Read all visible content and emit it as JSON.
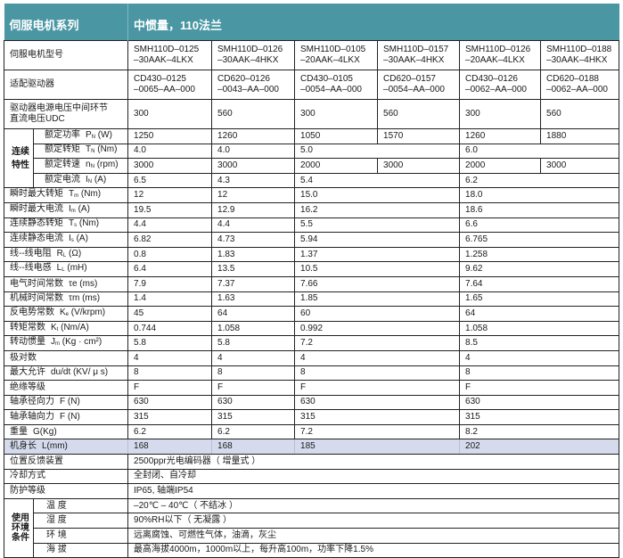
{
  "header": {
    "series_label": "伺服电机系列",
    "series_value": "中惯量，110法兰"
  },
  "accent_color": "#4a97a3",
  "highlight_color": "#d5dbec",
  "top_rows": [
    {
      "label": "伺服电机型号",
      "values": [
        "SMH110D–0125\n–30AAK–4LKX",
        "SMH110D–0126\n–30AAK–4HKX",
        "SMH110D–0105\n–20AAK–4LKX",
        "SMH110D–0157\n–30AAK–4HKX",
        "SMH110D–0126\n–20AAK–4LKX",
        "SMH110D–0188\n–30AAK–4HKX"
      ]
    },
    {
      "label": "适配驱动器",
      "values": [
        "CD430–0125\n–0065–AA–000",
        "CD620–0126\n–0043–AA–000",
        "CD430–0105\n–0054–AA–000",
        "CD620–0157\n–0054–AA–000",
        "CD430–0126\n–0062–AA–000",
        "CD620–0188\n–0062–AA–000"
      ]
    },
    {
      "label": "驱动器电源电压中间环节\n直流电压UDC",
      "values": [
        "300",
        "560",
        "300",
        "560",
        "300",
        "560"
      ]
    }
  ],
  "continuous": {
    "group_label": "连续特性",
    "rows": [
      {
        "name": "额定功率",
        "sym": "P",
        "sub": "N",
        "unit": "(W)",
        "cells": [
          [
            "1250",
            1
          ],
          [
            "1260",
            1
          ],
          [
            "1050",
            1
          ],
          [
            "1570",
            1
          ],
          [
            "1260",
            1
          ],
          [
            "1880",
            1
          ]
        ]
      },
      {
        "name": "额定转矩",
        "sym": "T",
        "sub": "N",
        "unit": "(Nm)",
        "cells": [
          [
            "4.0",
            1
          ],
          [
            "4.0",
            1
          ],
          [
            "5.0",
            2
          ],
          [
            "6.0",
            2
          ]
        ]
      },
      {
        "name": "额定转速",
        "sym": "n",
        "sub": "N",
        "unit": "(rpm)",
        "cells": [
          [
            "3000",
            1
          ],
          [
            "3000",
            1
          ],
          [
            "2000",
            1
          ],
          [
            "3000",
            1
          ],
          [
            "2000",
            1
          ],
          [
            "3000",
            1
          ]
        ]
      },
      {
        "name": "额定电流",
        "sym": "I",
        "sub": "N",
        "unit": "(A)",
        "cells": [
          [
            "6.5",
            1
          ],
          [
            "4.3",
            1
          ],
          [
            "5.4",
            2
          ],
          [
            "6.2",
            2
          ]
        ]
      }
    ]
  },
  "spec_rows": [
    {
      "name": "瞬时最大转矩",
      "sym": "T",
      "sub": "m",
      "unit": "(Nm)",
      "values": [
        "12",
        "12",
        "15.0",
        "18.0"
      ]
    },
    {
      "name": "瞬时最大电流",
      "sym": "I",
      "sub": "m",
      "unit": "(A)",
      "values": [
        "19.5",
        "12.9",
        "16.2",
        "18.6"
      ]
    },
    {
      "name": "连续静态转矩",
      "sym": "T",
      "sub": "s",
      "unit": "(Nm)",
      "values": [
        "4.4",
        "4.4",
        "5.5",
        "6.6"
      ]
    },
    {
      "name": "连续静态电流",
      "sym": "I",
      "sub": "s",
      "unit": "(A)",
      "values": [
        "6.82",
        "4.73",
        "5.94",
        "6.765"
      ]
    },
    {
      "name": "线--线电阻",
      "sym": "R",
      "sub": "L",
      "unit": "(Ω)",
      "values": [
        "0.8",
        "1.83",
        "1.37",
        "1.258"
      ]
    },
    {
      "name": "线--线电感",
      "sym": "L",
      "sub": "L",
      "unit": "(mH)",
      "values": [
        "6.4",
        "13.5",
        "10.5",
        "9.62"
      ]
    },
    {
      "name": "电气时间常数",
      "sym": "τe",
      "sub": "",
      "unit": "(ms)",
      "values": [
        "7.9",
        "7.37",
        "7.66",
        "7.64"
      ]
    },
    {
      "name": "机械时间常数",
      "sym": "τm",
      "sub": "",
      "unit": "(ms)",
      "values": [
        "1.4",
        "1.63",
        "1.85",
        "1.65"
      ]
    },
    {
      "name": "反电势常数",
      "sym": "K",
      "sub": "e",
      "unit": "(V/krpm)",
      "values": [
        "45",
        "64",
        "60",
        "64"
      ]
    },
    {
      "name": "转矩常数",
      "sym": "K",
      "sub": "t",
      "unit": "(Nm/A)",
      "values": [
        "0.744",
        "1.058",
        "0.992",
        "1.058"
      ]
    },
    {
      "name": "转动惯量",
      "sym": "J",
      "sub": "m",
      "unit": "(Kg · cm²)",
      "values": [
        "5.8",
        "5.8",
        "7.2",
        "8.5"
      ]
    },
    {
      "name": "极对数",
      "sym": "",
      "sub": "",
      "unit": "",
      "values": [
        "4",
        "4",
        "4",
        "4"
      ]
    },
    {
      "name": "最大允许",
      "sym": "du/dt",
      "sub": "",
      "unit": "(KV/ μ s)",
      "values": [
        "8",
        "8",
        "8",
        "8"
      ]
    },
    {
      "name": "绝缘等级",
      "sym": "",
      "sub": "",
      "unit": "",
      "values": [
        "F",
        "F",
        "F",
        "F"
      ]
    },
    {
      "name": "轴承径向力",
      "sym": "F",
      "sub": "",
      "unit": "(N)",
      "values": [
        "630",
        "630",
        "630",
        "630"
      ]
    },
    {
      "name": "轴承轴向力",
      "sym": "F",
      "sub": "",
      "unit": "(N)",
      "values": [
        "315",
        "315",
        "315",
        "315"
      ]
    },
    {
      "name": "重量",
      "sym": "G(Kg)",
      "sub": "",
      "unit": "",
      "values": [
        "6.2",
        "6.2",
        "7.2",
        "8.2"
      ]
    },
    {
      "name": "机身长",
      "sym": "L(mm)",
      "sub": "",
      "unit": "",
      "values": [
        "168",
        "168",
        "185",
        "202"
      ],
      "highlight": true
    }
  ],
  "common_rows": [
    {
      "label": "位置反馈装置",
      "value": "2500ppr光电编码器（ 增量式 ）"
    },
    {
      "label": "冷却方式",
      "value": "全封闭、自冷却"
    },
    {
      "label": "防护等级",
      "value": "IP65, 轴端IP54"
    }
  ],
  "environment": {
    "group_label": "使用环境条件",
    "rows": [
      {
        "label": "温 度",
        "value": "–20℃ – 40℃（ 不结冰 ）"
      },
      {
        "label": "湿 度",
        "value": "90%RH以下（ 无凝露 ）"
      },
      {
        "label": "环 境",
        "value": "远离腐蚀、可燃性气体，油滴，灰尘"
      },
      {
        "label": "海 拔",
        "value": "最高海拔4000m，1000m以上，每升高100m，功率下降1.5%"
      }
    ]
  }
}
